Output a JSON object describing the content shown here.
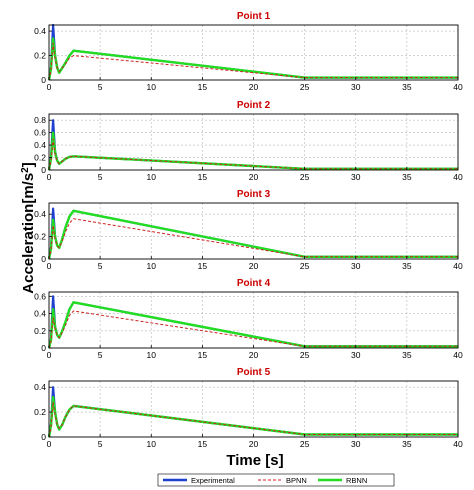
{
  "chart_data": {
    "type": "line",
    "figure": {
      "xlabel": "Time [s]",
      "ylabel_base": "Acceleration[m/s",
      "ylabel_sup": "2",
      "ylabel_end": "]",
      "legend_placement": "bottom-center",
      "legend": [
        {
          "name": "Experimental",
          "color": "#1f3fd0",
          "style": "solid"
        },
        {
          "name": "BPNN",
          "color": "#cc2222",
          "style": "dashed"
        },
        {
          "name": "RBNN",
          "color": "#22dd22",
          "style": "solid"
        }
      ]
    },
    "panels": [
      {
        "title": "Point 1",
        "xlim": [
          0,
          40
        ],
        "ylim": [
          0,
          0.45
        ],
        "xticks": [
          "0",
          "5",
          "10",
          "15",
          "20",
          "25",
          "30",
          "35",
          "40"
        ],
        "yticks": [
          {
            "v": 0,
            "label": "0"
          },
          {
            "v": 0.2,
            "label": "0.2"
          },
          {
            "v": 0.4,
            "label": "0.4"
          }
        ],
        "series": [
          {
            "name": "Experimental",
            "x": [
              0,
              0.2,
              0.4,
              0.6,
              0.8,
              1.0,
              1.3,
              1.6,
              2.0,
              2.4,
              25,
              40
            ],
            "y": [
              0,
              0.1,
              0.45,
              0.2,
              0.1,
              0.06,
              0.1,
              0.14,
              0.2,
              0.24,
              0.02,
              0.02
            ]
          },
          {
            "name": "BPNN",
            "x": [
              0,
              0.2,
              0.4,
              0.6,
              0.8,
              1.0,
              1.3,
              1.6,
              2.0,
              2.4,
              25,
              40
            ],
            "y": [
              0,
              0.08,
              0.3,
              0.18,
              0.1,
              0.07,
              0.1,
              0.13,
              0.18,
              0.2,
              0.02,
              0.02
            ]
          },
          {
            "name": "RBNN",
            "x": [
              0,
              0.2,
              0.4,
              0.6,
              0.8,
              1.0,
              1.3,
              1.6,
              2.0,
              2.4,
              25,
              40
            ],
            "y": [
              0,
              0.09,
              0.34,
              0.2,
              0.1,
              0.06,
              0.1,
              0.14,
              0.2,
              0.24,
              0.02,
              0.02
            ]
          }
        ]
      },
      {
        "title": "Point 2",
        "xlim": [
          0,
          40
        ],
        "ylim": [
          0,
          0.9
        ],
        "xticks": [
          "0",
          "5",
          "10",
          "15",
          "20",
          "25",
          "30",
          "35",
          "40"
        ],
        "yticks": [
          {
            "v": 0,
            "label": "0"
          },
          {
            "v": 0.2,
            "label": "0.2"
          },
          {
            "v": 0.4,
            "label": "0.4"
          },
          {
            "v": 0.6,
            "label": "0.6"
          },
          {
            "v": 0.8,
            "label": "0.8"
          }
        ],
        "series": [
          {
            "name": "Experimental",
            "x": [
              0,
              0.2,
              0.4,
              0.6,
              0.8,
              1.0,
              1.3,
              1.6,
              2.0,
              2.4,
              25,
              40
            ],
            "y": [
              0,
              0.2,
              0.8,
              0.3,
              0.15,
              0.1,
              0.14,
              0.18,
              0.21,
              0.22,
              0.02,
              0.02
            ]
          },
          {
            "name": "BPNN",
            "x": [
              0,
              0.2,
              0.4,
              0.6,
              0.8,
              1.0,
              1.3,
              1.6,
              2.0,
              2.4,
              25,
              40
            ],
            "y": [
              0,
              0.15,
              0.5,
              0.25,
              0.14,
              0.1,
              0.14,
              0.18,
              0.21,
              0.22,
              0.02,
              0.02
            ]
          },
          {
            "name": "RBNN",
            "x": [
              0,
              0.2,
              0.4,
              0.6,
              0.8,
              1.0,
              1.3,
              1.6,
              2.0,
              2.4,
              25,
              40
            ],
            "y": [
              0,
              0.18,
              0.6,
              0.28,
              0.15,
              0.1,
              0.14,
              0.18,
              0.21,
              0.22,
              0.02,
              0.02
            ]
          }
        ]
      },
      {
        "title": "Point 3",
        "xlim": [
          0,
          40
        ],
        "ylim": [
          0,
          0.5
        ],
        "xticks": [
          "0",
          "5",
          "10",
          "15",
          "20",
          "25",
          "30",
          "35",
          "40"
        ],
        "yticks": [
          {
            "v": 0,
            "label": "0"
          },
          {
            "v": 0.2,
            "label": "0.2"
          },
          {
            "v": 0.4,
            "label": "0.4"
          }
        ],
        "series": [
          {
            "name": "Experimental",
            "x": [
              0,
              0.2,
              0.4,
              0.6,
              0.8,
              1.0,
              1.3,
              1.6,
              2.0,
              2.4,
              25,
              40
            ],
            "y": [
              0,
              0.1,
              0.45,
              0.2,
              0.12,
              0.1,
              0.18,
              0.28,
              0.38,
              0.43,
              0.02,
              0.02
            ]
          },
          {
            "name": "BPNN",
            "x": [
              0,
              0.2,
              0.4,
              0.6,
              0.8,
              1.0,
              1.3,
              1.6,
              2.0,
              2.4,
              25,
              40
            ],
            "y": [
              0,
              0.08,
              0.3,
              0.18,
              0.12,
              0.1,
              0.16,
              0.24,
              0.32,
              0.36,
              0.02,
              0.02
            ]
          },
          {
            "name": "RBNN",
            "x": [
              0,
              0.2,
              0.4,
              0.6,
              0.8,
              1.0,
              1.3,
              1.6,
              2.0,
              2.4,
              25,
              40
            ],
            "y": [
              0,
              0.09,
              0.35,
              0.2,
              0.12,
              0.1,
              0.18,
              0.28,
              0.38,
              0.43,
              0.02,
              0.02
            ]
          }
        ]
      },
      {
        "title": "Point 4",
        "xlim": [
          0,
          40
        ],
        "ylim": [
          0,
          0.65
        ],
        "xticks": [
          "0",
          "5",
          "10",
          "15",
          "20",
          "25",
          "30",
          "35",
          "40"
        ],
        "yticks": [
          {
            "v": 0,
            "label": "0"
          },
          {
            "v": 0.2,
            "label": "0.2"
          },
          {
            "v": 0.4,
            "label": "0.4"
          },
          {
            "v": 0.6,
            "label": "0.6"
          }
        ],
        "series": [
          {
            "name": "Experimental",
            "x": [
              0,
              0.2,
              0.4,
              0.6,
              0.8,
              1.0,
              1.3,
              1.6,
              2.0,
              2.4,
              25,
              40
            ],
            "y": [
              0,
              0.1,
              0.6,
              0.25,
              0.15,
              0.12,
              0.2,
              0.3,
              0.45,
              0.53,
              0.02,
              0.02
            ]
          },
          {
            "name": "BPNN",
            "x": [
              0,
              0.2,
              0.4,
              0.6,
              0.8,
              1.0,
              1.3,
              1.6,
              2.0,
              2.4,
              25,
              40
            ],
            "y": [
              0,
              0.08,
              0.35,
              0.22,
              0.15,
              0.12,
              0.18,
              0.26,
              0.38,
              0.43,
              0.02,
              0.02
            ]
          },
          {
            "name": "RBNN",
            "x": [
              0,
              0.2,
              0.4,
              0.6,
              0.8,
              1.0,
              1.3,
              1.6,
              2.0,
              2.4,
              25,
              40
            ],
            "y": [
              0,
              0.09,
              0.45,
              0.24,
              0.15,
              0.12,
              0.2,
              0.3,
              0.45,
              0.53,
              0.02,
              0.02
            ]
          }
        ]
      },
      {
        "title": "Point 5",
        "xlim": [
          0,
          40
        ],
        "ylim": [
          0,
          0.45
        ],
        "xticks": [
          "0",
          "5",
          "10",
          "15",
          "20",
          "25",
          "30",
          "35",
          "40"
        ],
        "yticks": [
          {
            "v": 0,
            "label": "0"
          },
          {
            "v": 0.2,
            "label": "0.2"
          },
          {
            "v": 0.4,
            "label": "0.4"
          }
        ],
        "series": [
          {
            "name": "Experimental",
            "x": [
              0,
              0.2,
              0.4,
              0.6,
              0.8,
              1.0,
              1.3,
              1.6,
              2.0,
              2.4,
              25,
              40
            ],
            "y": [
              0,
              0.1,
              0.4,
              0.2,
              0.1,
              0.06,
              0.1,
              0.16,
              0.22,
              0.25,
              0.02,
              0.02
            ]
          },
          {
            "name": "BPNN",
            "x": [
              0,
              0.2,
              0.4,
              0.6,
              0.8,
              1.0,
              1.3,
              1.6,
              2.0,
              2.4,
              25,
              40
            ],
            "y": [
              0,
              0.08,
              0.28,
              0.18,
              0.1,
              0.07,
              0.1,
              0.16,
              0.22,
              0.25,
              0.02,
              0.02
            ]
          },
          {
            "name": "RBNN",
            "x": [
              0,
              0.2,
              0.4,
              0.6,
              0.8,
              1.0,
              1.3,
              1.6,
              2.0,
              2.4,
              25,
              40
            ],
            "y": [
              0,
              0.09,
              0.32,
              0.2,
              0.1,
              0.06,
              0.1,
              0.16,
              0.22,
              0.25,
              0.02,
              0.02
            ]
          }
        ]
      }
    ]
  }
}
